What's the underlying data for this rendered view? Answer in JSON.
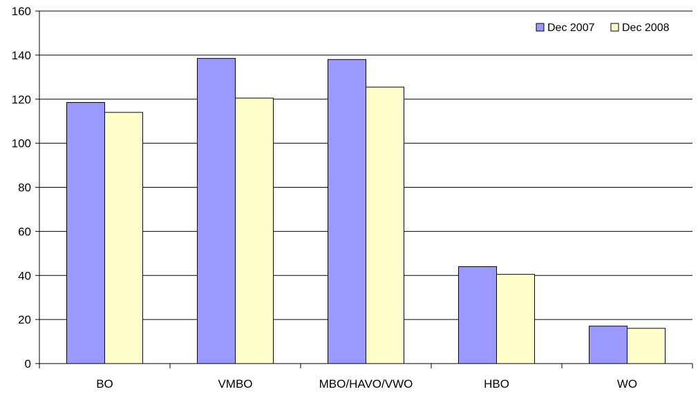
{
  "chart_data": {
    "type": "bar",
    "title": "",
    "xlabel": "",
    "ylabel": "",
    "categories": [
      "BO",
      "VMBO",
      "MBO/HAVO/VWO",
      "HBO",
      "WO"
    ],
    "series": [
      {
        "name": "Dec 2007",
        "color": "#9999ff",
        "values": [
          118.5,
          138.5,
          138,
          44,
          17
        ]
      },
      {
        "name": "Dec 2008",
        "color": "#ffffcc",
        "values": [
          114,
          120.5,
          125.5,
          40.5,
          16
        ]
      }
    ],
    "ylim": [
      0,
      160
    ],
    "yticks": [
      "0",
      "20",
      "40",
      "60",
      "80",
      "100",
      "120",
      "140",
      "160"
    ],
    "grid": true,
    "legend_position": "top-right"
  }
}
